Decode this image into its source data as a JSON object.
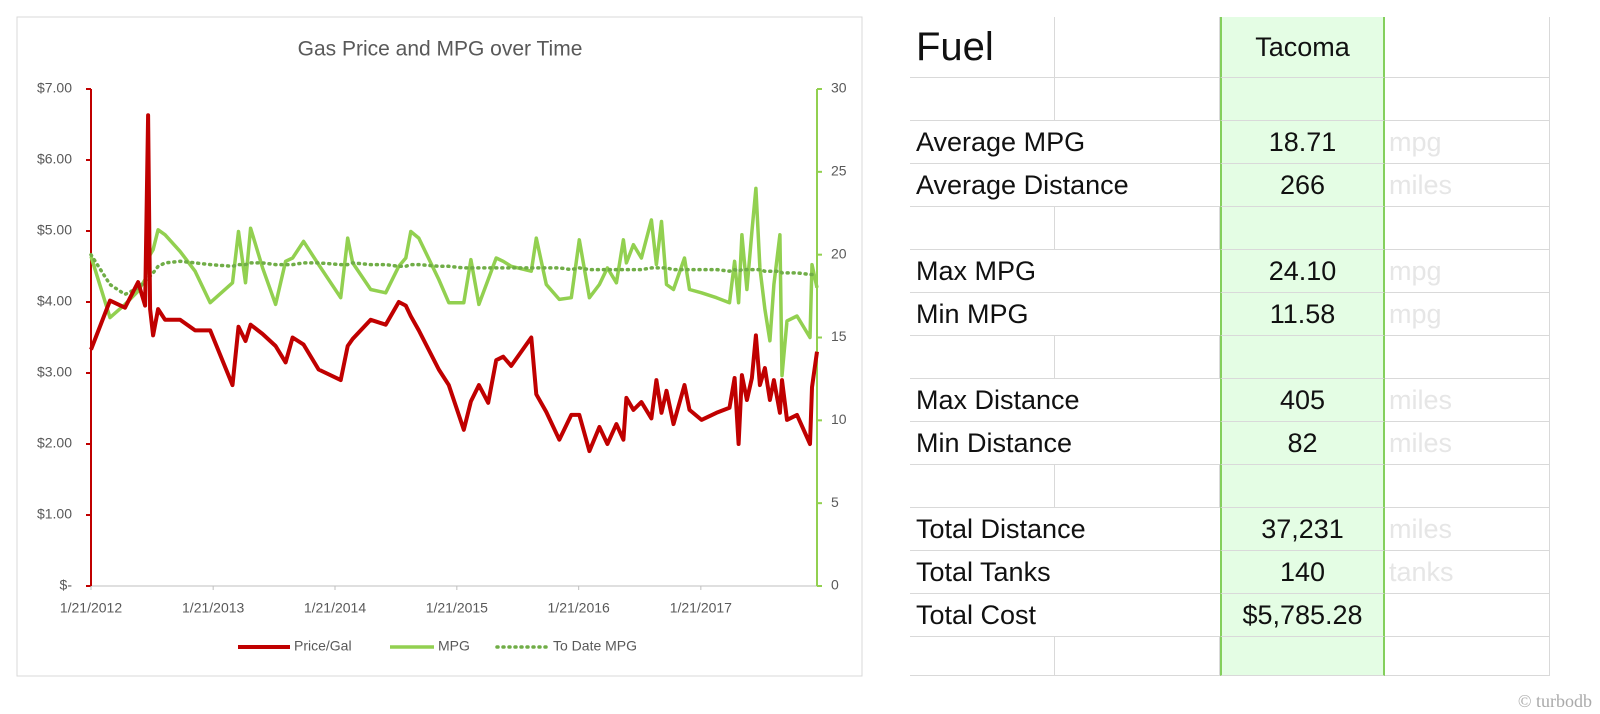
{
  "chart_data": {
    "type": "line",
    "title": "Gas Price and MPG over Time",
    "x": [
      "2012-01-21",
      "2012-03-18",
      "2012-05-02",
      "2012-06-10",
      "2012-07-01",
      "2012-07-10",
      "2012-07-16",
      "2012-07-25",
      "2012-08-09",
      "2012-08-30",
      "2012-10-14",
      "2012-11-28",
      "2013-01-12",
      "2013-03-20",
      "2013-04-07",
      "2013-04-28",
      "2013-05-13",
      "2013-06-18",
      "2013-07-27",
      "2013-08-26",
      "2013-09-16",
      "2013-10-19",
      "2013-12-03",
      "2014-02-07",
      "2014-02-28",
      "2014-03-15",
      "2014-05-08",
      "2014-06-22",
      "2014-07-31",
      "2014-08-21",
      "2014-09-05",
      "2014-09-29",
      "2014-11-28",
      "2014-12-28",
      "2015-02-11",
      "2015-03-04",
      "2015-03-28",
      "2015-04-25",
      "2015-05-19",
      "2015-06-09",
      "2015-07-03",
      "2015-09-01",
      "2015-09-16",
      "2015-10-16",
      "2015-11-24",
      "2015-12-30",
      "2016-01-23",
      "2016-02-22",
      "2016-03-23",
      "2016-04-16",
      "2016-05-13",
      "2016-06-03",
      "2016-06-12",
      "2016-07-03",
      "2016-07-27",
      "2016-08-26",
      "2016-09-10",
      "2016-09-25",
      "2016-10-10",
      "2016-10-31",
      "2016-12-03",
      "2016-12-18",
      "2017-01-23",
      "2017-03-09",
      "2017-04-17",
      "2017-05-02",
      "2017-05-14",
      "2017-05-24",
      "2017-06-08",
      "2017-06-23",
      "2017-07-05",
      "2017-07-17",
      "2017-08-01",
      "2017-08-16",
      "2017-08-28",
      "2017-09-15",
      "2017-09-21",
      "2017-10-06",
      "2017-11-05",
      "2017-12-14",
      "2017-12-20",
      "2018-01-04"
    ],
    "xlim": [
      "2012-01-21",
      "2018-01-04"
    ],
    "xticks": [
      {
        "value": "2012-01-21",
        "label": "1/21/2012"
      },
      {
        "value": "2013-01-21",
        "label": "1/21/2013"
      },
      {
        "value": "2014-01-21",
        "label": "1/21/2014"
      },
      {
        "value": "2015-01-21",
        "label": "1/21/2015"
      },
      {
        "value": "2016-01-21",
        "label": "1/21/2016"
      },
      {
        "value": "2017-01-21",
        "label": "1/21/2017"
      }
    ],
    "ylim": [
      0,
      7
    ],
    "yticks": [
      {
        "value": 0,
        "label": "$-"
      },
      {
        "value": 1,
        "label": "$1.00"
      },
      {
        "value": 2,
        "label": "$2.00"
      },
      {
        "value": 3,
        "label": "$3.00"
      },
      {
        "value": 4,
        "label": "$4.00"
      },
      {
        "value": 5,
        "label": "$5.00"
      },
      {
        "value": 6,
        "label": "$6.00"
      },
      {
        "value": 7,
        "label": "$7.00"
      }
    ],
    "y2lim": [
      0,
      30
    ],
    "y2ticks": [
      0,
      5,
      10,
      15,
      20,
      25,
      30
    ],
    "legend": "bottom",
    "series": [
      {
        "name": "Price/Gal",
        "color": "#c00000",
        "style": "solid",
        "values": [
          3.33,
          4.02,
          3.92,
          4.28,
          3.95,
          6.63,
          3.9,
          3.53,
          3.9,
          3.75,
          3.75,
          3.6,
          3.6,
          2.83,
          3.65,
          3.45,
          3.68,
          3.55,
          3.38,
          3.15,
          3.5,
          3.4,
          3.05,
          2.9,
          3.38,
          3.48,
          3.75,
          3.68,
          4.0,
          3.95,
          3.8,
          3.6,
          3.05,
          2.83,
          2.2,
          2.6,
          2.83,
          2.58,
          3.18,
          3.23,
          3.1,
          3.5,
          2.7,
          2.45,
          2.06,
          2.41,
          2.41,
          1.9,
          2.24,
          2.0,
          2.28,
          2.06,
          2.65,
          2.48,
          2.59,
          2.36,
          2.9,
          2.44,
          2.75,
          2.28,
          2.83,
          2.48,
          2.34,
          2.44,
          2.51,
          2.93,
          2.0,
          2.97,
          2.62,
          2.93,
          3.53,
          2.83,
          3.07,
          2.62,
          2.9,
          2.44,
          2.9,
          2.34,
          2.41,
          2.0,
          2.8,
          3.3
        ]
      },
      {
        "name": "MPG",
        "color": "#92d050",
        "style": "solid",
        "axis": "y2",
        "values": [
          19.9,
          16.2,
          17.0,
          17.8,
          18.5,
          19.5,
          20.0,
          20.3,
          21.5,
          21.2,
          20.2,
          19.0,
          17.1,
          18.3,
          21.4,
          18.3,
          21.6,
          19.2,
          17.0,
          19.6,
          19.8,
          20.8,
          19.4,
          17.4,
          21.0,
          19.5,
          17.9,
          17.7,
          19.3,
          19.8,
          21.4,
          21.0,
          18.5,
          17.1,
          17.1,
          19.7,
          17.0,
          18.5,
          19.8,
          19.6,
          19.3,
          19.0,
          21.0,
          18.2,
          17.3,
          17.4,
          20.9,
          17.4,
          18.2,
          19.2,
          18.3,
          20.9,
          19.5,
          20.6,
          19.8,
          22.1,
          19.4,
          22.0,
          18.2,
          17.9,
          19.8,
          17.9,
          17.7,
          17.4,
          17.1,
          19.6,
          17.1,
          21.2,
          17.9,
          21.4,
          24.0,
          19.2,
          16.7,
          14.8,
          18.2,
          21.2,
          12.7,
          16.0,
          16.3,
          15.0,
          19.4,
          18.0
        ]
      },
      {
        "name": "To Date MPG",
        "color": "#70ad47",
        "style": "dotted",
        "axis": "y2",
        "values": [
          20.0,
          18.2,
          17.6,
          18.0,
          18.4,
          18.6,
          18.7,
          18.9,
          19.3,
          19.5,
          19.6,
          19.5,
          19.4,
          19.3,
          19.4,
          19.4,
          19.5,
          19.5,
          19.4,
          19.4,
          19.4,
          19.5,
          19.5,
          19.4,
          19.4,
          19.5,
          19.4,
          19.4,
          19.3,
          19.3,
          19.4,
          19.4,
          19.3,
          19.3,
          19.2,
          19.2,
          19.2,
          19.2,
          19.2,
          19.2,
          19.2,
          19.2,
          19.2,
          19.2,
          19.2,
          19.1,
          19.2,
          19.1,
          19.1,
          19.1,
          19.1,
          19.1,
          19.1,
          19.1,
          19.1,
          19.2,
          19.2,
          19.2,
          19.2,
          19.1,
          19.1,
          19.1,
          19.1,
          19.1,
          19.0,
          19.1,
          19.0,
          19.1,
          19.1,
          19.1,
          19.1,
          19.1,
          19.0,
          19.0,
          19.0,
          19.0,
          18.9,
          18.9,
          18.9,
          18.8,
          18.8,
          18.8
        ]
      }
    ]
  },
  "table": {
    "title": "Fuel",
    "column": "Tacoma",
    "groups": [
      [
        [
          "Average MPG",
          "18.71",
          "mpg"
        ],
        [
          "Average Distance",
          "266",
          "miles"
        ]
      ],
      [
        [
          "Max MPG",
          "24.10",
          "mpg"
        ],
        [
          "Min MPG",
          "11.58",
          "mpg"
        ]
      ],
      [
        [
          "Max Distance",
          "405",
          "miles"
        ],
        [
          "Min Distance",
          "82",
          "miles"
        ]
      ],
      [
        [
          "Total Distance",
          "37,231",
          "miles"
        ],
        [
          "Total Tanks",
          "140",
          "tanks"
        ],
        [
          "Total Cost",
          "$5,785.28"
        ]
      ]
    ]
  },
  "watermark": "© turbodb"
}
